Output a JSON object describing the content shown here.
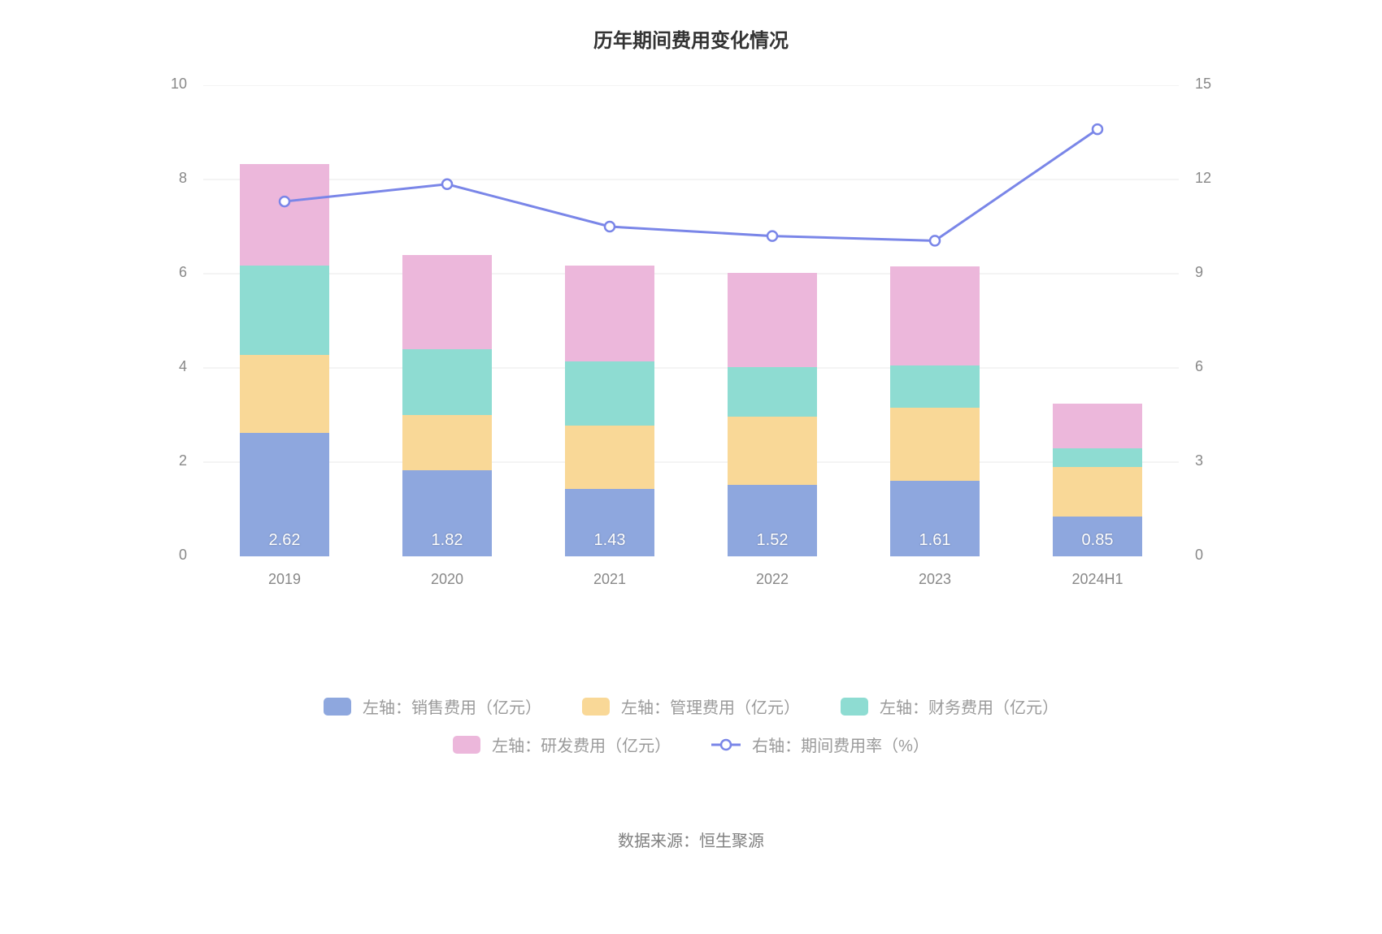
{
  "title": "历年期间费用变化情况",
  "source_label": "数据来源：恒生聚源",
  "chart": {
    "type": "stacked-bar-with-line",
    "categories": [
      "2019",
      "2020",
      "2021",
      "2022",
      "2023",
      "2024H1"
    ],
    "left_axis": {
      "min": 0,
      "max": 10,
      "step": 2,
      "ticks": [
        0,
        2,
        4,
        6,
        8,
        10
      ]
    },
    "right_axis": {
      "min": 0,
      "max": 15,
      "step": 3,
      "ticks": [
        0,
        3,
        6,
        9,
        12,
        15
      ]
    },
    "bar_width_ratio": 0.55,
    "series": [
      {
        "id": "sales",
        "name": "左轴：销售费用（亿元）",
        "color": "#8ea7de",
        "values": [
          2.62,
          1.82,
          1.43,
          1.52,
          1.61,
          0.85
        ],
        "show_label": true
      },
      {
        "id": "admin",
        "name": "左轴：管理费用（亿元）",
        "color": "#f9d897",
        "values": [
          1.65,
          1.18,
          1.35,
          1.45,
          1.55,
          1.05
        ],
        "show_label": false
      },
      {
        "id": "finance",
        "name": "左轴：财务费用（亿元）",
        "color": "#8edcd2",
        "values": [
          1.9,
          1.4,
          1.35,
          1.05,
          0.9,
          0.4
        ],
        "show_label": false
      },
      {
        "id": "rnd",
        "name": "左轴：研发费用（亿元）",
        "color": "#ecb7db",
        "values": [
          2.15,
          2.0,
          2.05,
          2.0,
          2.1,
          0.95
        ],
        "show_label": false
      }
    ],
    "line": {
      "id": "rate",
      "name": "右轴：期间费用率（%）",
      "color": "#7a86e8",
      "point_fill": "#ffffff",
      "point_radius": 6,
      "line_width": 3,
      "values": [
        11.3,
        11.85,
        10.5,
        10.2,
        10.05,
        13.6
      ]
    },
    "label_color": "#ffffff",
    "label_fontsize": 20,
    "axis_label_color": "#888888",
    "axis_label_fontsize": 18,
    "split_line_color": "#eaeaea",
    "background_color": "#ffffff"
  },
  "legend": {
    "text_color": "#9a9a9a",
    "fontsize": 20,
    "row_breaks": [
      3
    ]
  }
}
